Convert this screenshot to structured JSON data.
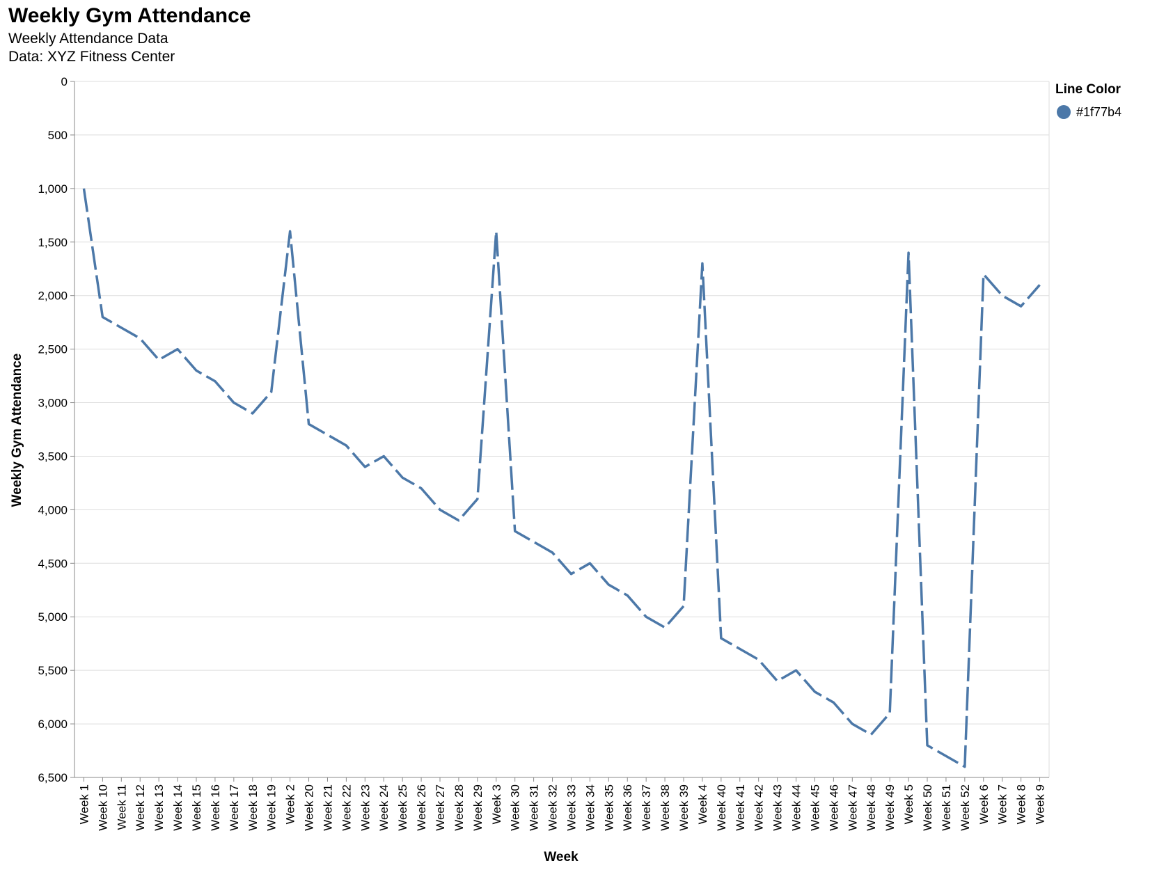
{
  "chart_data": {
    "type": "line",
    "title": "Weekly Gym Attendance",
    "subtitle": [
      "Weekly Attendance Data",
      "Data: XYZ Fitness Center"
    ],
    "xlabel": "Week",
    "ylabel": "Weekly Gym Attendance",
    "ylim": [
      0,
      6500
    ],
    "y_reversed": true,
    "y_ticks": [
      0,
      500,
      1000,
      1500,
      2000,
      2500,
      3000,
      3500,
      4000,
      4500,
      5000,
      5500,
      6000,
      6500
    ],
    "grid": true,
    "line_color": "#4c78a8",
    "legend": {
      "title": "Line Color",
      "entries": [
        "#1f77b4"
      ],
      "placement": "right"
    },
    "categories": [
      "Week 1",
      "Week 10",
      "Week 11",
      "Week 12",
      "Week 13",
      "Week 14",
      "Week 15",
      "Week 16",
      "Week 17",
      "Week 18",
      "Week 19",
      "Week 2",
      "Week 20",
      "Week 21",
      "Week 22",
      "Week 23",
      "Week 24",
      "Week 25",
      "Week 26",
      "Week 27",
      "Week 28",
      "Week 29",
      "Week 3",
      "Week 30",
      "Week 31",
      "Week 32",
      "Week 33",
      "Week 34",
      "Week 35",
      "Week 36",
      "Week 37",
      "Week 38",
      "Week 39",
      "Week 4",
      "Week 40",
      "Week 41",
      "Week 42",
      "Week 43",
      "Week 44",
      "Week 45",
      "Week 46",
      "Week 47",
      "Week 48",
      "Week 49",
      "Week 5",
      "Week 50",
      "Week 51",
      "Week 52",
      "Week 6",
      "Week 7",
      "Week 8",
      "Week 9"
    ],
    "values": [
      1000,
      2200,
      2300,
      2400,
      2600,
      2500,
      2700,
      2800,
      3000,
      3100,
      2900,
      1400,
      3200,
      3300,
      3400,
      3600,
      3500,
      3700,
      3800,
      4000,
      4100,
      3900,
      1400,
      4200,
      4300,
      4400,
      4600,
      4500,
      4700,
      4800,
      5000,
      5100,
      4900,
      1700,
      5200,
      5300,
      5400,
      5600,
      5500,
      5700,
      5800,
      6000,
      6100,
      5900,
      1600,
      6200,
      6300,
      6400,
      1800,
      2000,
      2100,
      1900
    ]
  }
}
